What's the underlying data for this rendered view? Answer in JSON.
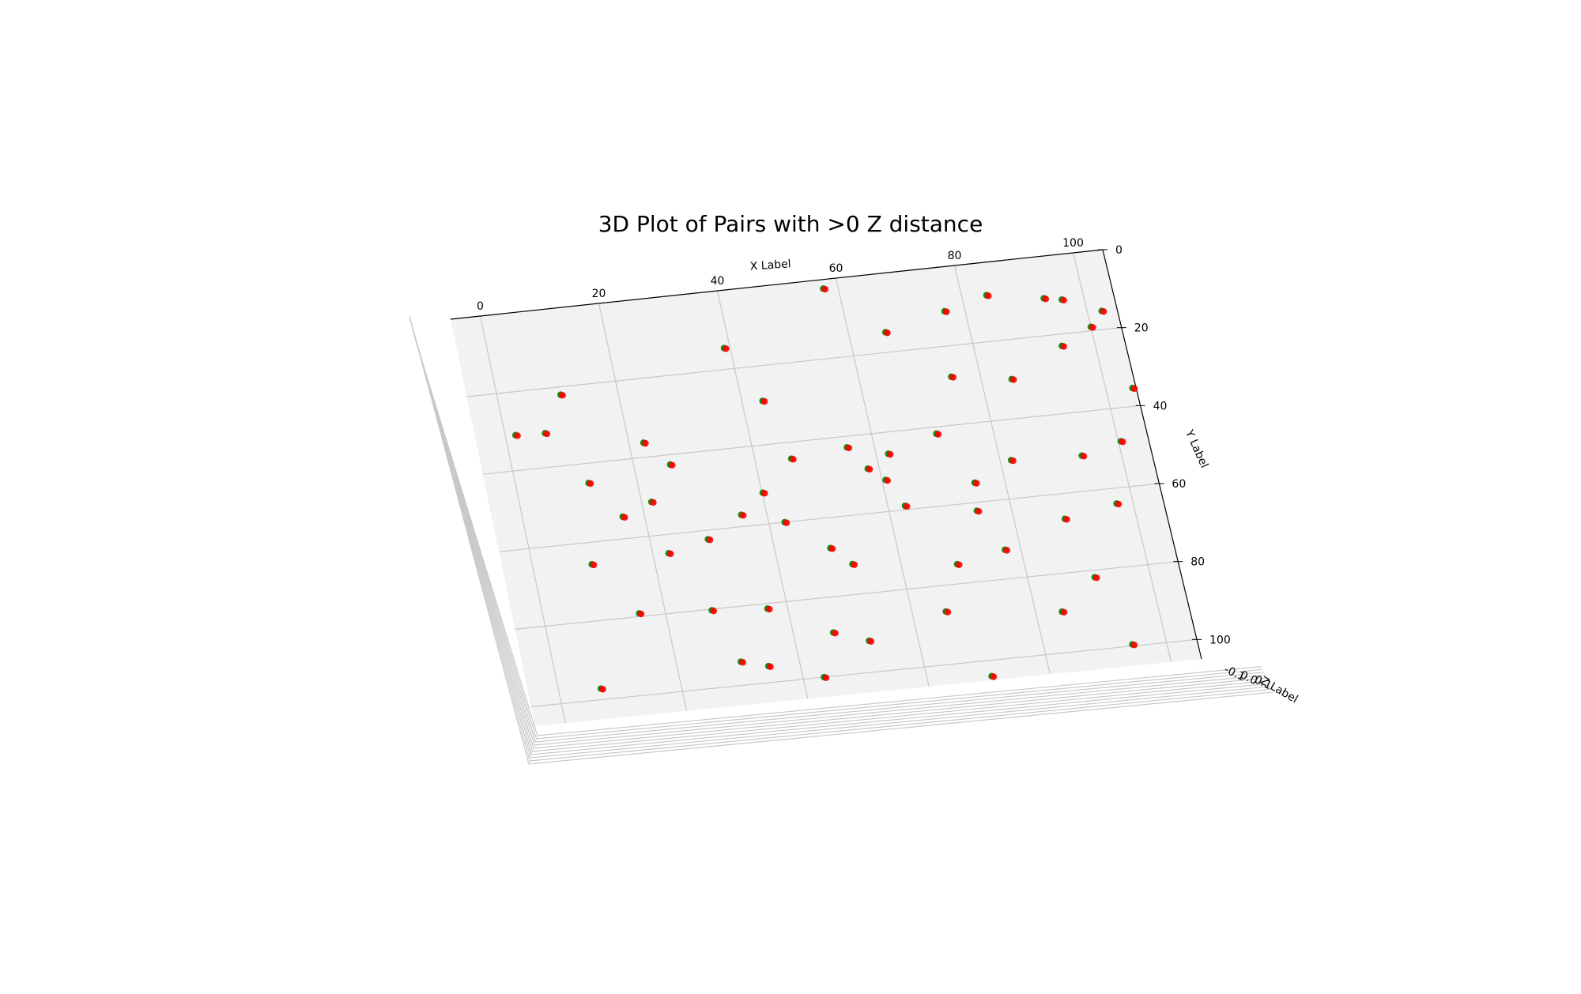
{
  "chart_data": {
    "type": "scatter",
    "projection": "3d",
    "title": "3D Plot of Pairs with >0 Z distance",
    "xlabel": "X Label",
    "ylabel": "Y Label",
    "zlabel": "Z Label",
    "xlim": [
      -5,
      105
    ],
    "ylim": [
      0,
      105
    ],
    "xticks": [
      "0",
      "20",
      "40",
      "60",
      "80",
      "100"
    ],
    "yticks": [
      "0",
      "20",
      "40",
      "60",
      "80",
      "100"
    ],
    "zticks": [
      "-0.1",
      "0.0",
      "0.1"
    ],
    "grid": true,
    "colors": {
      "series_a": "#008000",
      "series_b": "#ff0000",
      "pane": "#f2f2f2",
      "grid": "#c8c8c8"
    },
    "series": [
      {
        "color": "#008000",
        "points": [
          [
            57.5,
            2.3
          ],
          [
            96.3,
            11.4
          ],
          [
            10.5,
            22.0
          ],
          [
            39.0,
            14.6
          ],
          [
            66.1,
            14.9
          ],
          [
            76.6,
            11.2
          ],
          [
            84.1,
            8.3
          ],
          [
            93.4,
            10.6
          ],
          [
            102.4,
            15.3
          ],
          [
            1.7,
            31.0
          ],
          [
            22.4,
            36.3
          ],
          [
            6.6,
            31.3
          ],
          [
            55.5,
            42.8
          ],
          [
            62.0,
            45.5
          ],
          [
            70.6,
            41.7
          ],
          [
            43.4,
            28.9
          ],
          [
            75.2,
            27.8
          ],
          [
            94.5,
            23.0
          ],
          [
            100.0,
            19.0
          ],
          [
            26.0,
            42.5
          ],
          [
            21.6,
            51.4
          ],
          [
            16.4,
            54.4
          ],
          [
            81.8,
            50.3
          ],
          [
            104.4,
            35.4
          ],
          [
            35.8,
            57.0
          ],
          [
            46.0,
            44.2
          ],
          [
            62.8,
            59.0
          ],
          [
            88.3,
            66.4
          ],
          [
            69.1,
            75.0
          ],
          [
            90.9,
            81.8
          ],
          [
            77.4,
            72.6
          ],
          [
            97.3,
            63.9
          ],
          [
            15.7,
            79.2
          ],
          [
            27.6,
            80.3
          ],
          [
            49.1,
            67.7
          ],
          [
            74.3,
            62.1
          ],
          [
            52.1,
            72.3
          ],
          [
            65.5,
            86.6
          ],
          [
            34.8,
            95.8
          ],
          [
            43.4,
            100.0
          ],
          [
            6.9,
            97.2
          ],
          [
            30.5,
            94.0
          ],
          [
            84.3,
            89.6
          ],
          [
            94.4,
            99.6
          ],
          [
            70.5,
            104.0
          ],
          [
            36.7,
            81.3
          ],
          [
            46.5,
            89.0
          ],
          [
            52.0,
            92.0
          ],
          [
            58.1,
            48.7
          ],
          [
            60.6,
            52.0
          ],
          [
            93.5,
            51.0
          ],
          [
            100.4,
            48.4
          ],
          [
            9.7,
            65.6
          ],
          [
            22.6,
            64.8
          ],
          [
            29.5,
            62.3
          ],
          [
            12.0,
            45.0
          ],
          [
            85.0,
            30.0
          ],
          [
            40.1,
            52.0
          ],
          [
            42.6,
            60.0
          ],
          [
            75.0,
            55.0
          ]
        ]
      },
      {
        "color": "#ff0000",
        "points": [
          [
            57.8,
            2.5
          ],
          [
            96.6,
            11.6
          ],
          [
            10.8,
            22.2
          ],
          [
            39.3,
            14.8
          ],
          [
            66.4,
            15.1
          ],
          [
            76.9,
            11.4
          ],
          [
            84.4,
            8.5
          ],
          [
            93.7,
            10.8
          ],
          [
            102.7,
            15.5
          ],
          [
            2.0,
            31.2
          ],
          [
            22.7,
            36.5
          ],
          [
            6.9,
            31.5
          ],
          [
            55.8,
            43.0
          ],
          [
            62.3,
            45.7
          ],
          [
            70.9,
            41.9
          ],
          [
            43.7,
            29.1
          ],
          [
            75.5,
            28.0
          ],
          [
            94.8,
            23.2
          ],
          [
            100.3,
            19.2
          ],
          [
            26.3,
            42.7
          ],
          [
            21.9,
            51.6
          ],
          [
            16.7,
            54.6
          ],
          [
            82.1,
            50.5
          ],
          [
            104.7,
            35.6
          ],
          [
            36.1,
            57.2
          ],
          [
            46.3,
            44.4
          ],
          [
            63.1,
            59.2
          ],
          [
            88.6,
            66.6
          ],
          [
            69.4,
            75.2
          ],
          [
            91.2,
            82.0
          ],
          [
            77.7,
            72.8
          ],
          [
            97.6,
            64.1
          ],
          [
            16.0,
            79.4
          ],
          [
            27.9,
            80.5
          ],
          [
            49.4,
            67.9
          ],
          [
            74.6,
            62.3
          ],
          [
            52.4,
            72.5
          ],
          [
            65.8,
            86.8
          ],
          [
            35.1,
            96.0
          ],
          [
            43.7,
            100.2
          ],
          [
            7.2,
            97.4
          ],
          [
            30.8,
            94.2
          ],
          [
            84.6,
            89.8
          ],
          [
            94.7,
            99.8
          ],
          [
            70.8,
            104.2
          ],
          [
            37.0,
            81.5
          ],
          [
            46.8,
            89.2
          ],
          [
            52.3,
            92.2
          ],
          [
            58.4,
            48.9
          ],
          [
            60.9,
            52.2
          ],
          [
            93.8,
            51.2
          ],
          [
            100.7,
            48.6
          ],
          [
            10.0,
            65.8
          ],
          [
            22.9,
            65.0
          ],
          [
            29.8,
            62.5
          ],
          [
            12.3,
            45.2
          ],
          [
            85.3,
            30.2
          ],
          [
            40.4,
            52.2
          ],
          [
            42.9,
            60.2
          ],
          [
            75.3,
            55.2
          ]
        ]
      }
    ]
  }
}
